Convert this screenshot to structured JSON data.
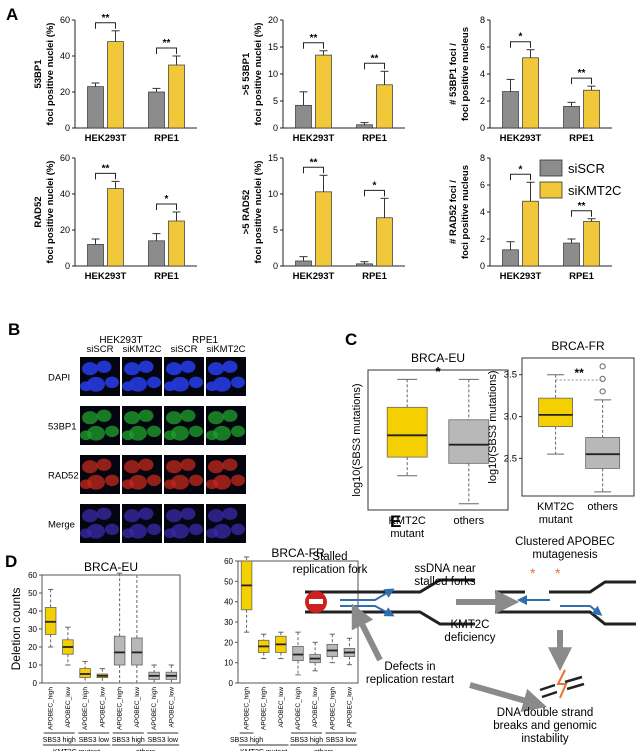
{
  "panel_letters": {
    "a": "A",
    "b": "B",
    "c": "C",
    "d": "D",
    "e": "E"
  },
  "legend": {
    "si_scr": "siSCR",
    "si_kmt2c": "siKMT2C"
  },
  "colors": {
    "si_scr": "#8c8c8c",
    "si_kmt2c": "#f0c83a",
    "ylw_box": "#f5d000",
    "grey_box": "#b8b8b8"
  },
  "chart_data": [
    {
      "type": "bar",
      "id": "a1",
      "ylabel": [
        "53BP1",
        "foci positive nuclei (%)"
      ],
      "ylim": [
        0,
        60
      ],
      "ticks": [
        0,
        20,
        40,
        60
      ],
      "categories": [
        "HEK293T",
        "RPE1"
      ],
      "series": [
        {
          "name": "siSCR",
          "values": [
            23,
            20
          ],
          "errors": [
            2,
            2
          ]
        },
        {
          "name": "siKMT2C",
          "values": [
            48,
            35
          ],
          "errors": [
            6,
            5
          ]
        }
      ],
      "sig": [
        "**",
        "**"
      ]
    },
    {
      "type": "bar",
      "id": "a2",
      "ylabel": [
        ">5 53BP1",
        "foci positive nuclei (%)"
      ],
      "ylim": [
        0,
        20
      ],
      "ticks": [
        0,
        5,
        10,
        15,
        20
      ],
      "categories": [
        "HEK293T",
        "RPE1"
      ],
      "series": [
        {
          "name": "siSCR",
          "values": [
            4.2,
            0.6
          ],
          "errors": [
            2.5,
            0.4
          ]
        },
        {
          "name": "siKMT2C",
          "values": [
            13.5,
            8
          ],
          "errors": [
            0.8,
            2.5
          ]
        }
      ],
      "sig": [
        "**",
        "**"
      ]
    },
    {
      "type": "bar",
      "id": "a3",
      "ylabel": [
        "# 53BP1 foci /",
        "foci positive nucleus"
      ],
      "ylim": [
        0,
        8
      ],
      "ticks": [
        0,
        2,
        4,
        6,
        8
      ],
      "categories": [
        "HEK293T",
        "RPE1"
      ],
      "series": [
        {
          "name": "siSCR",
          "values": [
            2.7,
            1.6
          ],
          "errors": [
            0.9,
            0.3
          ]
        },
        {
          "name": "siKMT2C",
          "values": [
            5.2,
            2.8
          ],
          "errors": [
            0.6,
            0.3
          ]
        }
      ],
      "sig": [
        "*",
        "**"
      ]
    },
    {
      "type": "bar",
      "id": "a4",
      "ylabel": [
        "RAD52",
        "foci positive nuclei (%)"
      ],
      "ylim": [
        0,
        60
      ],
      "ticks": [
        0,
        20,
        40,
        60
      ],
      "categories": [
        "HEK293T",
        "RPE1"
      ],
      "series": [
        {
          "name": "siSCR",
          "values": [
            12,
            14
          ],
          "errors": [
            3,
            4
          ]
        },
        {
          "name": "siKMT2C",
          "values": [
            43,
            25
          ],
          "errors": [
            4,
            5
          ]
        }
      ],
      "sig": [
        "**",
        "*"
      ]
    },
    {
      "type": "bar",
      "id": "a5",
      "ylabel": [
        ">5 RAD52",
        "foci positive nuclei (%)"
      ],
      "ylim": [
        0,
        15
      ],
      "ticks": [
        0,
        5,
        10,
        15
      ],
      "categories": [
        "HEK293T",
        "RPE1"
      ],
      "series": [
        {
          "name": "siSCR",
          "values": [
            0.7,
            0.3
          ],
          "errors": [
            0.6,
            0.3
          ]
        },
        {
          "name": "siKMT2C",
          "values": [
            10.3,
            6.7
          ],
          "errors": [
            2.3,
            2.7
          ]
        }
      ],
      "sig": [
        "**",
        "*"
      ]
    },
    {
      "type": "bar",
      "id": "a6",
      "ylabel": [
        "# RAD52 foci /",
        "foci positive nucleus"
      ],
      "ylim": [
        0,
        8
      ],
      "ticks": [
        0,
        2,
        4,
        6,
        8
      ],
      "categories": [
        "HEK293T",
        "RPE1"
      ],
      "series": [
        {
          "name": "siSCR",
          "values": [
            1.2,
            1.7
          ],
          "errors": [
            0.6,
            0.3
          ]
        },
        {
          "name": "siKMT2C",
          "values": [
            4.8,
            3.3
          ],
          "errors": [
            1.4,
            0.2
          ]
        }
      ],
      "sig": [
        "*",
        "**"
      ]
    },
    {
      "type": "box",
      "id": "c1",
      "title": "BRCA-EU",
      "ylabel": "log10(SBS3 mutations)",
      "ticks": [],
      "categories": [
        "KMT2C mutant",
        "others"
      ],
      "boxes": [
        {
          "min": 1.95,
          "q1": 2.25,
          "median": 2.6,
          "q3": 3.05,
          "max": 3.5
        },
        {
          "min": 1.5,
          "q1": 2.15,
          "median": 2.45,
          "q3": 2.85,
          "max": 3.5
        }
      ],
      "sig": "*"
    },
    {
      "type": "box",
      "id": "c2",
      "title": "BRCA-FR",
      "ylabel": "log10(SBS3 mutations)",
      "ticks": [
        2.5,
        3.0,
        3.5
      ],
      "categories": [
        "KMT2C mutant",
        "others"
      ],
      "boxes": [
        {
          "min": 2.55,
          "q1": 2.88,
          "median": 3.02,
          "q3": 3.22,
          "max": 3.5
        },
        {
          "min": 2.1,
          "q1": 2.38,
          "median": 2.55,
          "q3": 2.75,
          "max": 3.2
        }
      ],
      "outliers": [
        3.3,
        3.45,
        3.6
      ],
      "sig": "**"
    },
    {
      "type": "box",
      "id": "d1",
      "title": "BRCA-EU",
      "ylabel": "Deletion counts",
      "ylim": [
        0,
        60
      ],
      "ticks": [
        0,
        10,
        20,
        30,
        40,
        50,
        60
      ],
      "categories": [
        "APOBEC_high",
        "APOBEC_low",
        "APOBEC_high",
        "APOBEC_low",
        "APOBEC_high",
        "APOBEC_low",
        "APOBEC_high",
        "APOBEC_low"
      ],
      "boxes": [
        {
          "min": 20,
          "q1": 27,
          "median": 34,
          "q3": 42,
          "max": 52,
          "color": "ylw"
        },
        {
          "min": 10,
          "q1": 16,
          "median": 20,
          "q3": 24,
          "max": 31,
          "color": "ylw"
        },
        {
          "min": 0,
          "q1": 3,
          "median": 5,
          "q3": 8,
          "max": 12,
          "color": "ylw"
        },
        {
          "min": 0,
          "q1": 3,
          "median": 4,
          "q3": 5,
          "max": 8,
          "color": "ylw"
        },
        {
          "min": 0,
          "q1": 10,
          "median": 17,
          "q3": 26,
          "max": 61,
          "color": "grey"
        },
        {
          "min": 0,
          "q1": 10,
          "median": 17,
          "q3": 25,
          "max": 60,
          "color": "grey"
        },
        {
          "min": 0,
          "q1": 2,
          "median": 4,
          "q3": 6,
          "max": 10,
          "color": "grey"
        },
        {
          "min": 0,
          "q1": 2,
          "median": 4,
          "q3": 6,
          "max": 10,
          "color": "grey"
        }
      ],
      "groups": [
        {
          "label": "SBS3 high",
          "span": [
            0,
            1
          ]
        },
        {
          "label": "SBS3 low",
          "span": [
            2,
            3
          ]
        },
        {
          "label": "SBS3 high",
          "span": [
            4,
            5
          ]
        },
        {
          "label": "SBS3 low",
          "span": [
            6,
            7
          ]
        }
      ],
      "supergroups": [
        {
          "label": "KMT2C mutant",
          "span": [
            0,
            3
          ]
        },
        {
          "label": "others",
          "span": [
            4,
            7
          ]
        }
      ]
    },
    {
      "type": "box",
      "id": "d2",
      "title": "BRCA-FR",
      "ylim": [
        0,
        60
      ],
      "ticks": [
        0,
        10,
        20,
        30,
        40,
        50,
        60
      ],
      "categories": [
        "APOBEC_high",
        "APOBEC_high",
        "APOBEC_low",
        "APOBEC_high",
        "APOBEC_low",
        "APOBEC_high",
        "APOBEC_low"
      ],
      "boxes": [
        {
          "min": 25,
          "q1": 36,
          "median": 48,
          "q3": 60,
          "max": 62,
          "color": "ylw"
        },
        {
          "min": 12,
          "q1": 15,
          "median": 18,
          "q3": 21,
          "max": 24,
          "color": "ylw"
        },
        {
          "min": 12,
          "q1": 15,
          "median": 19,
          "q3": 23,
          "max": 25,
          "color": "ylw"
        },
        {
          "min": 4,
          "q1": 11,
          "median": 14,
          "q3": 18,
          "max": 25,
          "color": "grey"
        },
        {
          "min": 6,
          "q1": 10,
          "median": 12,
          "q3": 14,
          "max": 20,
          "color": "grey"
        },
        {
          "min": 10,
          "q1": 13,
          "median": 16,
          "q3": 19,
          "max": 24,
          "color": "grey"
        },
        {
          "min": 9,
          "q1": 13,
          "median": 15,
          "q3": 17,
          "max": 22,
          "color": "grey"
        }
      ],
      "groups": [
        {
          "label": "SBS3 high",
          "span": [
            0,
            0
          ]
        },
        {
          "label": "SBS3 high",
          "span": [
            3,
            4
          ]
        },
        {
          "label": "SBS3 low",
          "span": [
            5,
            6
          ]
        }
      ],
      "supergroups": [
        {
          "label": "KMT2C mutant",
          "span": [
            0,
            2
          ]
        },
        {
          "label": "others",
          "span": [
            3,
            6
          ]
        }
      ]
    }
  ],
  "micro": {
    "col_groups": [
      "HEK293T",
      "RPE1"
    ],
    "cols": [
      "siSCR",
      "siKMT2C",
      "siSCR",
      "siKMT2C"
    ],
    "rows": [
      "DAPI",
      "53BP1",
      "RAD52",
      "Merge"
    ],
    "row_colors": [
      "#2438d6",
      "#1fa12c",
      "#c3281c",
      "#3a2aa8"
    ]
  },
  "diagram": {
    "stalled": "Stalled\nreplication fork",
    "ssdna": "ssDNA near\nstalled forks",
    "clustered": "Clustered APOBEC\nmutagenesis",
    "kmt2c": "KMT2C\ndeficiency",
    "defects": "Defects in\nreplication restart",
    "dsb": "DNA double strand\nbreaks and genomic\ninstability"
  }
}
